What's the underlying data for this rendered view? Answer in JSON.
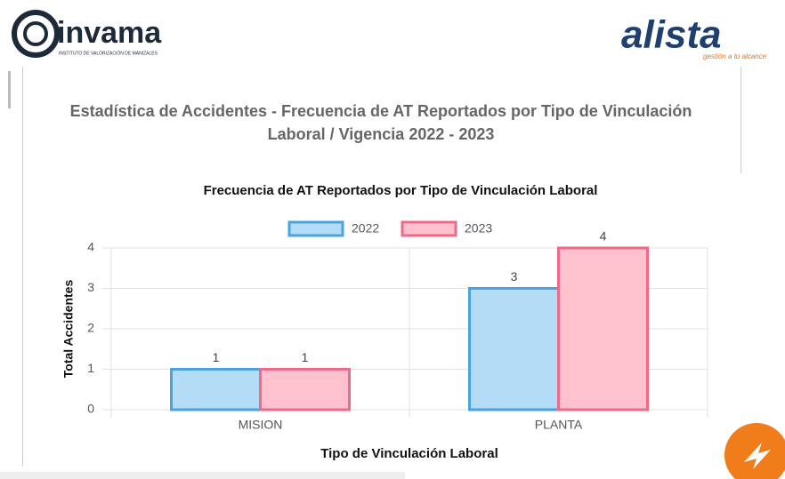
{
  "header": {
    "left_logo": {
      "name": "invama",
      "tagline": "INSTITUTO DE VALORIZACIÓN DE MANIZALES"
    },
    "right_logo": {
      "name": "alista",
      "tagline": "gestión a tu alcance"
    }
  },
  "section_title": "Estadística de Accidentes - Frecuencia de AT Reportados por Tipo de Vinculación Laboral / Vigencia 2022 - 2023",
  "chart_data": {
    "type": "bar",
    "title": "Frecuencia de AT Reportados por Tipo de Vinculación Laboral",
    "x_label": "Tipo de Vinculación Laboral",
    "y_label": "Total Accidentes",
    "categories": [
      "MISION",
      "PLANTA"
    ],
    "series": [
      {
        "name": "2022",
        "color": "#4aa3e0",
        "fill": "#b3dcf7",
        "values": [
          1,
          3
        ]
      },
      {
        "name": "2023",
        "color": "#ee6a88",
        "fill": "#ffc1cd",
        "values": [
          1,
          4
        ]
      }
    ],
    "ylim": [
      0,
      4
    ],
    "yticks": [
      0,
      1,
      2,
      3,
      4
    ],
    "grid": true,
    "legend": "top"
  }
}
